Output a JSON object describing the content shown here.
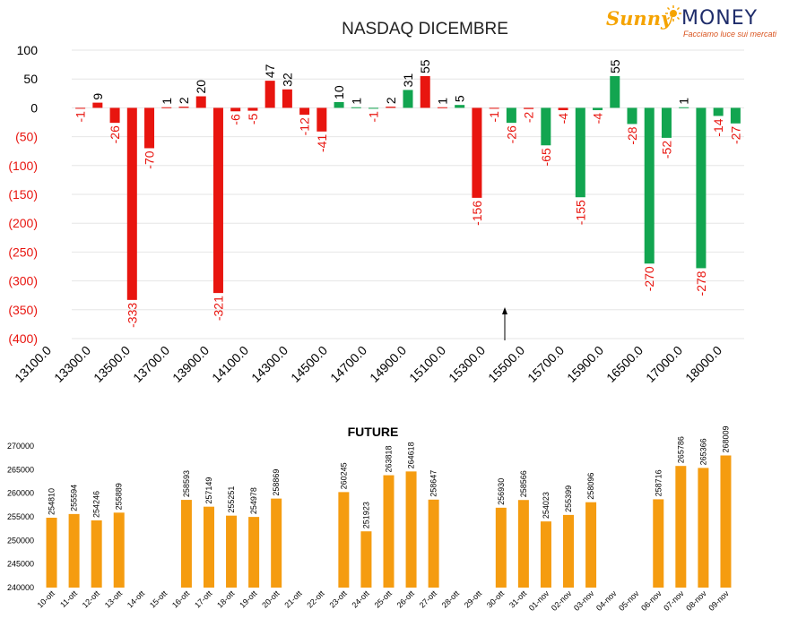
{
  "brand": {
    "name_a": "Sunny",
    "name_b": "MONEY",
    "tagline": "Facciamo luce sui mercati",
    "color_a": "#f5a300",
    "color_b": "#1f2d6b"
  },
  "chart_data": [
    {
      "type": "bar",
      "title": "NASDAQ DICEMBRE",
      "ylim": [
        -400,
        100
      ],
      "yticks": [
        100,
        50,
        0,
        -50,
        -100,
        -150,
        -200,
        -250,
        -300,
        -350,
        -400
      ],
      "ytick_labels": [
        "100",
        "50",
        "0",
        "(50)",
        "(100)",
        "(150)",
        "(200)",
        "(250)",
        "(300)",
        "(350)",
        "(400)"
      ],
      "xtick_labels": [
        "13100.0",
        "13300.0",
        "13500.0",
        "13700.0",
        "13900.0",
        "14100.0",
        "14300.0",
        "14500.0",
        "14700.0",
        "14900.0",
        "15100.0",
        "15300.0",
        "15500.0",
        "15700.0",
        "15900.0",
        "16500.0",
        "17000.0",
        "18000.0"
      ],
      "colors": {
        "r": "#e8150f",
        "g": "#12a550"
      },
      "bars": [
        {
          "v": -1,
          "c": "r"
        },
        {
          "v": 9,
          "c": "r"
        },
        {
          "v": -26,
          "c": "r"
        },
        {
          "v": -333,
          "c": "r"
        },
        {
          "v": -70,
          "c": "r"
        },
        {
          "v": 1,
          "c": "r"
        },
        {
          "v": 2,
          "c": "r"
        },
        {
          "v": 20,
          "c": "r"
        },
        {
          "v": -321,
          "c": "r"
        },
        {
          "v": -6,
          "c": "r"
        },
        {
          "v": -5,
          "c": "r"
        },
        {
          "v": 47,
          "c": "r"
        },
        {
          "v": 32,
          "c": "r"
        },
        {
          "v": -12,
          "c": "r"
        },
        {
          "v": -41,
          "c": "r"
        },
        {
          "v": 10,
          "c": "g"
        },
        {
          "v": 1,
          "c": "g"
        },
        {
          "v": -1,
          "c": "g"
        },
        {
          "v": 2,
          "c": "r"
        },
        {
          "v": 31,
          "c": "g"
        },
        {
          "v": 55,
          "c": "r"
        },
        {
          "v": 1,
          "c": "r"
        },
        {
          "v": 5,
          "c": "g"
        },
        {
          "v": -156,
          "c": "r"
        },
        {
          "v": -1,
          "c": "r"
        },
        {
          "v": -26,
          "c": "g"
        },
        {
          "v": -2,
          "c": "r"
        },
        {
          "v": -65,
          "c": "g"
        },
        {
          "v": -4,
          "c": "r"
        },
        {
          "v": -155,
          "c": "g"
        },
        {
          "v": -4,
          "c": "g"
        },
        {
          "v": 55,
          "c": "g"
        },
        {
          "v": -28,
          "c": "g"
        },
        {
          "v": -270,
          "c": "g"
        },
        {
          "v": -52,
          "c": "g"
        },
        {
          "v": 1,
          "c": "g"
        },
        {
          "v": -278,
          "c": "g"
        },
        {
          "v": -14,
          "c": "g"
        },
        {
          "v": -27,
          "c": "g"
        }
      ]
    },
    {
      "type": "bar",
      "title": "FUTURE",
      "color": "#f59c10",
      "ylim": [
        240000,
        270000
      ],
      "yticks": [
        270000,
        265000,
        260000,
        255000,
        250000,
        245000,
        240000
      ],
      "categories": [
        "10-ott",
        "11-ott",
        "12-ott",
        "13-ott",
        "14-ott",
        "15-ott",
        "16-ott",
        "17-ott",
        "18-ott",
        "19-ott",
        "20-ott",
        "21-ott",
        "22-ott",
        "23-ott",
        "24-ott",
        "25-ott",
        "26-ott",
        "27-ott",
        "28-ott",
        "29-ott",
        "30-ott",
        "31-ott",
        "01-nov",
        "02-nov",
        "03-nov",
        "04-nov",
        "05-nov",
        "06-nov",
        "07-nov",
        "08-nov",
        "09-nov"
      ],
      "values": [
        254810,
        255594,
        254246,
        255889,
        null,
        null,
        258593,
        257149,
        255251,
        254978,
        258869,
        null,
        null,
        260245,
        251923,
        263818,
        264618,
        258647,
        null,
        null,
        256930,
        258566,
        254023,
        255399,
        258096,
        null,
        null,
        258716,
        265786,
        265366,
        268009
      ]
    }
  ]
}
